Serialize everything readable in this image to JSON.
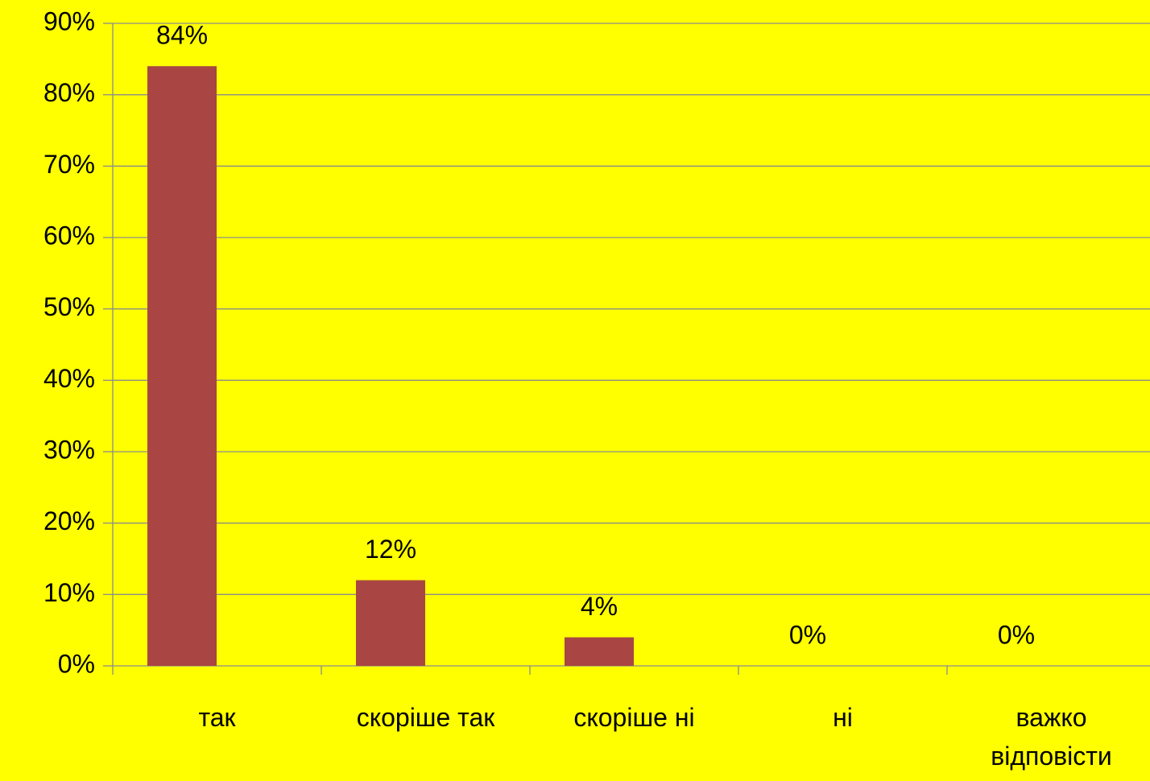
{
  "chart_data": {
    "type": "bar",
    "categories": [
      "так",
      "скоріше так",
      "скоріше ні",
      "ні",
      "важко відповісти"
    ],
    "values": [
      84,
      12,
      4,
      0,
      0
    ],
    "value_labels": [
      "84%",
      "12%",
      "4%",
      "0%",
      "0%"
    ],
    "color": "#a94643",
    "ylim": [
      0,
      90
    ],
    "yticks": [
      {
        "value": 0,
        "label": "0%"
      },
      {
        "value": 10,
        "label": "10%"
      },
      {
        "value": 20,
        "label": "20%"
      },
      {
        "value": 30,
        "label": "30%"
      },
      {
        "value": 40,
        "label": "40%"
      },
      {
        "value": 50,
        "label": "50%"
      },
      {
        "value": 60,
        "label": "60%"
      },
      {
        "value": 70,
        "label": "70%"
      },
      {
        "value": 80,
        "label": "80%"
      },
      {
        "value": 90,
        "label": "90%"
      }
    ],
    "grid": true
  }
}
